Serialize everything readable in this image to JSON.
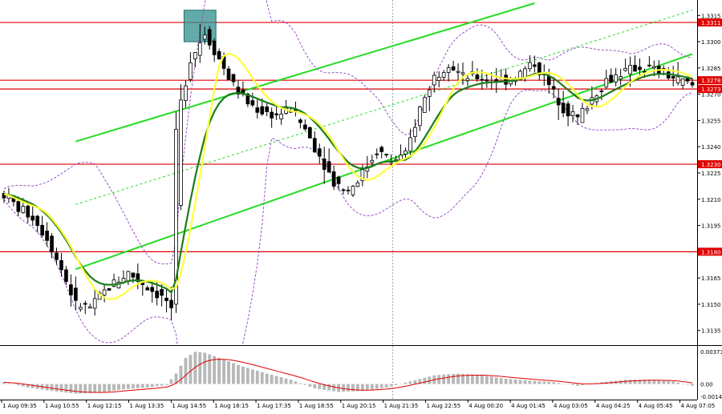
{
  "chart_data": [
    {
      "type": "candlestick",
      "title": "",
      "y_tick_labels": [
        "1.3315",
        "1.3300",
        "1.3285",
        "1.3270",
        "1.3255",
        "1.3240",
        "1.3225",
        "1.3210",
        "1.3195",
        "1.3180",
        "1.3165",
        "1.3150",
        "1.3135"
      ],
      "ylim": [
        1.3128,
        1.3322
      ],
      "x_tick_labels": [
        "1 Aug 09:35",
        "1 Aug 10:55",
        "1 Aug 12:15",
        "1 Aug 13:35",
        "1 Aug 14:55",
        "1 Aug 16:15",
        "1 Aug 17:35",
        "1 Aug 18:55",
        "1 Aug 20:15",
        "1 Aug 21:35",
        "1 Aug 22:55",
        "4 Aug 00:20",
        "4 Aug 01:45",
        "4 Aug 03:05",
        "4 Aug 04:25",
        "4 Aug 05:45",
        "4 Aug 07:05"
      ],
      "price_markers": [
        {
          "label": "1.3311",
          "value": 1.3311
        },
        {
          "label": "1.3278",
          "value": 1.3278
        },
        {
          "label": "1.3273",
          "value": 1.3273
        },
        {
          "label": "1.3230",
          "value": 1.323
        },
        {
          "label": "1.3180",
          "value": 1.318
        }
      ],
      "horizontal_levels": [
        1.3311,
        1.3278,
        1.3273,
        1.323,
        1.318
      ],
      "close_path": [
        [
          0,
          1.3213
        ],
        [
          3,
          1.3205
        ],
        [
          6,
          1.32
        ],
        [
          9,
          1.3188
        ],
        [
          12,
          1.317
        ],
        [
          15,
          1.315
        ],
        [
          18,
          1.3148
        ],
        [
          22,
          1.316
        ],
        [
          26,
          1.3168
        ],
        [
          30,
          1.316
        ],
        [
          34,
          1.3152
        ],
        [
          35,
          1.3145
        ],
        [
          37,
          1.3265
        ],
        [
          39,
          1.329
        ],
        [
          42,
          1.3305
        ],
        [
          45,
          1.329
        ],
        [
          48,
          1.3275
        ],
        [
          51,
          1.3265
        ],
        [
          54,
          1.326
        ],
        [
          57,
          1.3258
        ],
        [
          60,
          1.3262
        ],
        [
          63,
          1.325
        ],
        [
          66,
          1.3235
        ],
        [
          69,
          1.322
        ],
        [
          72,
          1.3215
        ],
        [
          75,
          1.3225
        ],
        [
          78,
          1.3238
        ],
        [
          81,
          1.3232
        ],
        [
          84,
          1.3235
        ],
        [
          87,
          1.3262
        ],
        [
          90,
          1.328
        ],
        [
          93,
          1.3288
        ],
        [
          96,
          1.328
        ],
        [
          99,
          1.328
        ],
        [
          102,
          1.3278
        ],
        [
          105,
          1.3278
        ],
        [
          108,
          1.3282
        ],
        [
          111,
          1.3288
        ],
        [
          114,
          1.3275
        ],
        [
          117,
          1.3262
        ],
        [
          120,
          1.3256
        ],
        [
          123,
          1.3268
        ],
        [
          126,
          1.3278
        ],
        [
          129,
          1.3282
        ],
        [
          132,
          1.3285
        ],
        [
          135,
          1.3285
        ],
        [
          138,
          1.3282
        ],
        [
          141,
          1.3278
        ],
        [
          144,
          1.3275
        ]
      ],
      "resistance_zone": {
        "x_range": [
          38,
          44
        ],
        "y_range": [
          1.33,
          1.3318
        ]
      },
      "indicator_panel": {
        "type": "macd",
        "y_tick_labels": [
          "0.00373",
          "0.00",
          "-0.00141"
        ],
        "histogram": [
          [
            0,
            0.0002
          ],
          [
            5,
            -0.0004
          ],
          [
            10,
            -0.0008
          ],
          [
            15,
            -0.0011
          ],
          [
            20,
            -0.001
          ],
          [
            25,
            -0.0006
          ],
          [
            30,
            -0.0004
          ],
          [
            34,
            -0.0001
          ],
          [
            36,
            0.0012
          ],
          [
            38,
            0.003
          ],
          [
            40,
            0.0037
          ],
          [
            42,
            0.0036
          ],
          [
            45,
            0.003
          ],
          [
            50,
            0.002
          ],
          [
            55,
            0.0012
          ],
          [
            60,
            0.0005
          ],
          [
            65,
            -0.0005
          ],
          [
            70,
            -0.0009
          ],
          [
            75,
            -0.0008
          ],
          [
            80,
            -0.0004
          ],
          [
            85,
            0.0003
          ],
          [
            90,
            0.001
          ],
          [
            95,
            0.0012
          ],
          [
            100,
            0.001
          ],
          [
            105,
            0.0006
          ],
          [
            110,
            0.0004
          ],
          [
            115,
            0.0002
          ],
          [
            120,
            -0.0002
          ],
          [
            125,
            0.0002
          ],
          [
            130,
            0.0005
          ],
          [
            135,
            0.0005
          ],
          [
            140,
            0.0003
          ],
          [
            144,
            -0.0002
          ]
        ]
      }
    }
  ]
}
